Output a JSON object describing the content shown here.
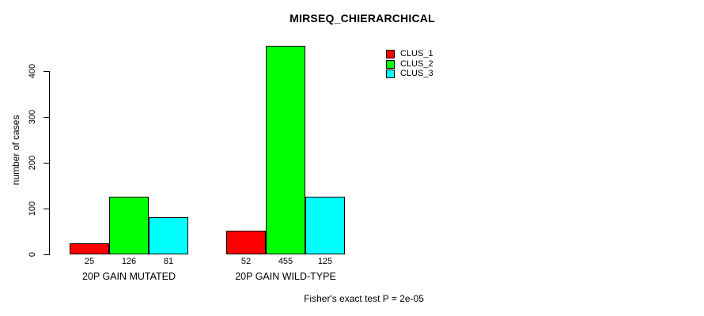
{
  "chart_data": {
    "type": "bar",
    "title": "MIRSEQ_CHIERARCHICAL",
    "ylabel": "number of cases",
    "xlabel": "",
    "categories": [
      "20P GAIN MUTATED",
      "20P GAIN WILD-TYPE"
    ],
    "series": [
      {
        "name": "CLUS_1",
        "color": "#FF0000",
        "values": [
          25,
          52
        ]
      },
      {
        "name": "CLUS_2",
        "color": "#00FF00",
        "values": [
          126,
          455
        ]
      },
      {
        "name": "CLUS_3",
        "color": "#00FFFF",
        "values": [
          81,
          125
        ]
      }
    ],
    "bar_value_labels": [
      [
        "25",
        "126",
        "81"
      ],
      [
        "52",
        "455",
        "125"
      ]
    ],
    "yticks": [
      0,
      100,
      200,
      300,
      400
    ],
    "ylim": [
      0,
      460
    ],
    "grid": false,
    "legend_position": "top-right",
    "legend": [
      "CLUS_1",
      "CLUS_2",
      "CLUS_3"
    ],
    "annotation": "Fisher's exact test P = 2e-05",
    "colors": {
      "background": "#FFFFFF",
      "axis": "#000000",
      "text": "#000000"
    }
  }
}
